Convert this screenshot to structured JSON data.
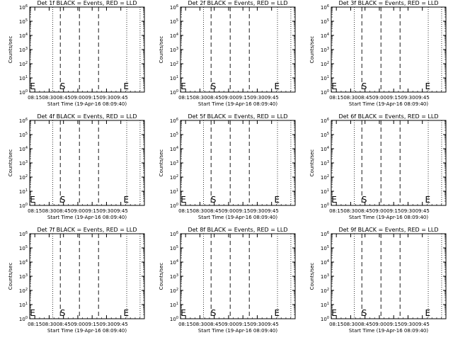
{
  "chart_data": [
    {
      "type": "line",
      "title": "Det 1f BLACK = Events, RED = LLD",
      "xlabel": "Start Time (19-Apr-16 08:09:40)",
      "ylabel": "Counts/sec",
      "xticks": [
        "08:15",
        "08:30",
        "08:45",
        "09:00",
        "09:15",
        "09:30",
        "09:45"
      ],
      "yticks": [
        "10^0",
        "10^1",
        "10^2",
        "10^3",
        "10^4",
        "10^5",
        "10^6"
      ],
      "ylim": [
        1,
        1000000
      ],
      "yscale": "log",
      "series": [],
      "markers": {
        "dotted_minutes": [
          24.0,
          101.5,
          115.5
        ],
        "dashed_minutes": [
          32.0,
          52.0,
          72.0
        ],
        "S": 34.5,
        "E": 101.0,
        "left_E": 3.0
      }
    },
    {
      "type": "line",
      "title": "Det 2f BLACK = Events, RED = LLD",
      "xlabel": "Start Time (19-Apr-16 08:09:40)",
      "ylabel": "Counts/sec",
      "xticks": [
        "08:15",
        "08:30",
        "08:45",
        "09:00",
        "09:15",
        "09:30",
        "09:45"
      ],
      "yticks": [
        "10^0",
        "10^1",
        "10^2",
        "10^3",
        "10^4",
        "10^5",
        "10^6"
      ],
      "ylim": [
        1,
        1000000
      ],
      "yscale": "log",
      "series": [],
      "markers": {
        "dotted_minutes": [
          24.0,
          101.5,
          115.5
        ],
        "dashed_minutes": [
          32.0,
          52.0,
          72.0
        ],
        "S": 34.5,
        "E": 101.0,
        "left_E": 3.0
      }
    },
    {
      "type": "line",
      "title": "Det 3f BLACK = Events, RED = LLD",
      "xlabel": "Start Time (19-Apr-16 08:09:40)",
      "ylabel": "Counts/sec",
      "xticks": [
        "08:15",
        "08:30",
        "08:45",
        "09:00",
        "09:15",
        "09:30",
        "09:45"
      ],
      "yticks": [
        "10^0",
        "10^1",
        "10^2",
        "10^3",
        "10^4",
        "10^5",
        "10^6"
      ],
      "ylim": [
        1,
        1000000
      ],
      "yscale": "log",
      "series": [],
      "markers": {
        "dotted_minutes": [
          24.0,
          101.5,
          115.5
        ],
        "dashed_minutes": [
          32.0,
          52.0,
          72.0
        ],
        "S": 34.5,
        "E": 101.0,
        "left_E": 3.0
      }
    },
    {
      "type": "line",
      "title": "Det 4f BLACK = Events, RED = LLD",
      "xlabel": "Start Time (19-Apr-16 08:09:40)",
      "ylabel": "Counts/sec",
      "xticks": [
        "08:15",
        "08:30",
        "08:45",
        "09:00",
        "09:15",
        "09:30",
        "09:45"
      ],
      "yticks": [
        "10^0",
        "10^1",
        "10^2",
        "10^3",
        "10^4",
        "10^5",
        "10^6"
      ],
      "ylim": [
        1,
        1000000
      ],
      "yscale": "log",
      "series": [],
      "markers": {
        "dotted_minutes": [
          24.0,
          101.5,
          115.5
        ],
        "dashed_minutes": [
          32.0,
          52.0,
          72.0
        ],
        "S": 34.5,
        "E": 101.0,
        "left_E": 3.0
      }
    },
    {
      "type": "line",
      "title": "Det 5f BLACK = Events, RED = LLD",
      "xlabel": "Start Time (19-Apr-16 08:09:40)",
      "ylabel": "Counts/sec",
      "xticks": [
        "08:15",
        "08:30",
        "08:45",
        "09:00",
        "09:15",
        "09:30",
        "09:45"
      ],
      "yticks": [
        "10^0",
        "10^1",
        "10^2",
        "10^3",
        "10^4",
        "10^5",
        "10^6"
      ],
      "ylim": [
        1,
        1000000
      ],
      "yscale": "log",
      "series": [],
      "markers": {
        "dotted_minutes": [
          24.0,
          101.5,
          115.5
        ],
        "dashed_minutes": [
          32.0,
          52.0,
          72.0
        ],
        "S": 34.5,
        "E": 101.0,
        "left_E": 3.0
      }
    },
    {
      "type": "line",
      "title": "Det 6f BLACK = Events, RED = LLD",
      "xlabel": "Start Time (19-Apr-16 08:09:40)",
      "ylabel": "Counts/sec",
      "xticks": [
        "08:15",
        "08:30",
        "08:45",
        "09:00",
        "09:15",
        "09:30",
        "09:45"
      ],
      "yticks": [
        "10^0",
        "10^1",
        "10^2",
        "10^3",
        "10^4",
        "10^5",
        "10^6"
      ],
      "ylim": [
        1,
        1000000
      ],
      "yscale": "log",
      "series": [],
      "markers": {
        "dotted_minutes": [
          24.0,
          101.5,
          115.5
        ],
        "dashed_minutes": [
          32.0,
          52.0,
          72.0
        ],
        "S": 34.5,
        "E": 101.0,
        "left_E": 3.0
      }
    },
    {
      "type": "line",
      "title": "Det 7f BLACK = Events, RED = LLD",
      "xlabel": "Start Time (19-Apr-16 08:09:40)",
      "ylabel": "Counts/sec",
      "xticks": [
        "08:15",
        "08:30",
        "08:45",
        "09:00",
        "09:15",
        "09:30",
        "09:45"
      ],
      "yticks": [
        "10^0",
        "10^1",
        "10^2",
        "10^3",
        "10^4",
        "10^5",
        "10^6"
      ],
      "ylim": [
        1,
        1000000
      ],
      "yscale": "log",
      "series": [],
      "markers": {
        "dotted_minutes": [
          24.0,
          101.5,
          115.5
        ],
        "dashed_minutes": [
          32.0,
          52.0,
          72.0
        ],
        "S": 34.5,
        "E": 101.0,
        "left_E": 3.0
      }
    },
    {
      "type": "line",
      "title": "Det 8f BLACK = Events, RED = LLD",
      "xlabel": "Start Time (19-Apr-16 08:09:40)",
      "ylabel": "Counts/sec",
      "xticks": [
        "08:15",
        "08:30",
        "08:45",
        "09:00",
        "09:15",
        "09:30",
        "09:45"
      ],
      "yticks": [
        "10^0",
        "10^1",
        "10^2",
        "10^3",
        "10^4",
        "10^5",
        "10^6"
      ],
      "ylim": [
        1,
        1000000
      ],
      "yscale": "log",
      "series": [],
      "markers": {
        "dotted_minutes": [
          24.0,
          101.5,
          115.5
        ],
        "dashed_minutes": [
          32.0,
          52.0,
          72.0
        ],
        "S": 34.5,
        "E": 101.0,
        "left_E": 3.0
      }
    },
    {
      "type": "line",
      "title": "Det 9f BLACK = Events, RED = LLD",
      "xlabel": "Start Time (19-Apr-16 08:09:40)",
      "ylabel": "Counts/sec",
      "xticks": [
        "08:15",
        "08:30",
        "08:45",
        "09:00",
        "09:15",
        "09:30",
        "09:45"
      ],
      "yticks": [
        "10^0",
        "10^1",
        "10^2",
        "10^3",
        "10^4",
        "10^5",
        "10^6"
      ],
      "ylim": [
        1,
        1000000
      ],
      "yscale": "log",
      "series": [],
      "markers": {
        "dotted_minutes": [
          24.0,
          101.5,
          115.5
        ],
        "dashed_minutes": [
          32.0,
          52.0,
          72.0
        ],
        "S": 34.5,
        "E": 101.0,
        "left_E": 3.0
      }
    }
  ]
}
